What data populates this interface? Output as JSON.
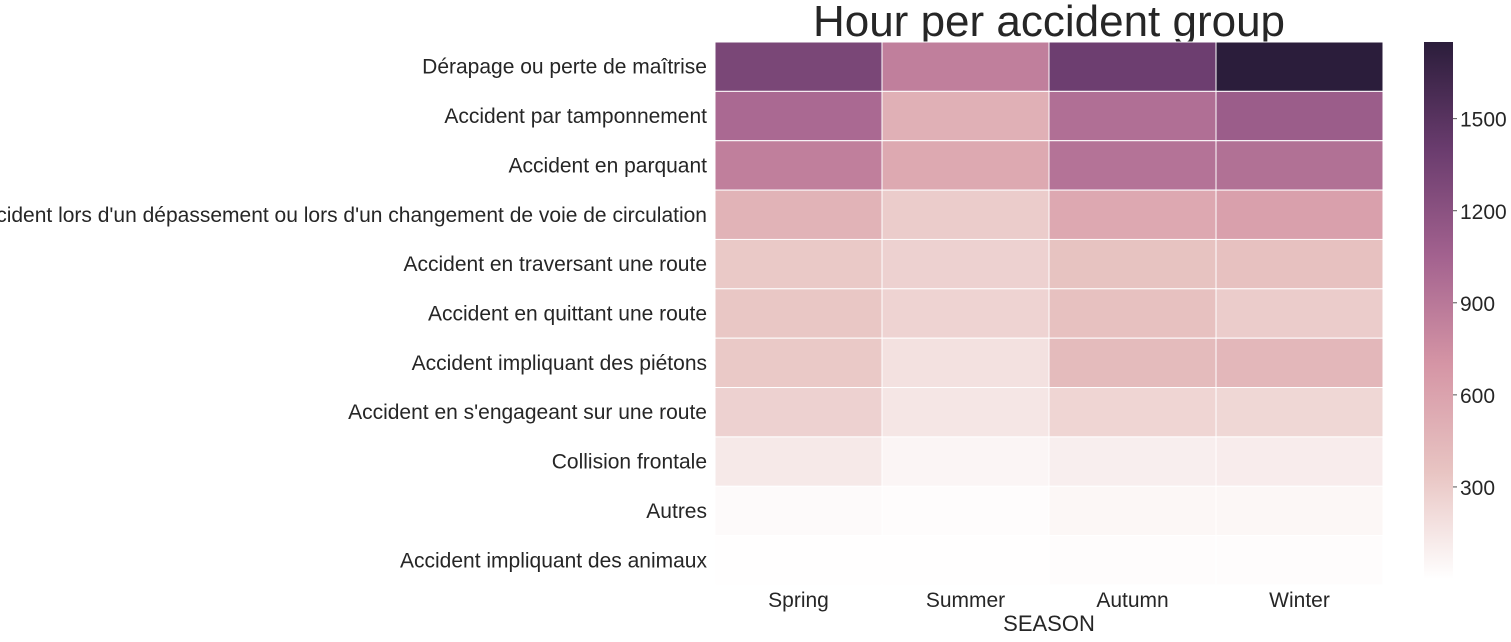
{
  "chart_data": {
    "type": "heatmap",
    "title": "Hour per accident group",
    "xlabel": "SEASON",
    "ylabel": "",
    "columns": [
      "Spring",
      "Summer",
      "Autumn",
      "Winter"
    ],
    "rows": [
      "Dérapage ou perte de maîtrise",
      "Accident par tamponnement",
      "Accident en parquant",
      "Accident lors d'un dépassement ou lors d'un changement de voie de circulation",
      "Accident en traversant une route",
      "Accident en quittant une route",
      "Accident impliquant des piétons",
      "Accident en s'engageant sur une route",
      "Collision frontale",
      "Autres",
      "Accident impliquant des animaux"
    ],
    "values": [
      [
        1300,
        850,
        1380,
        1750
      ],
      [
        1000,
        500,
        960,
        1100
      ],
      [
        850,
        550,
        930,
        950
      ],
      [
        480,
        300,
        560,
        620
      ],
      [
        320,
        270,
        360,
        370
      ],
      [
        330,
        260,
        370,
        300
      ],
      [
        320,
        180,
        420,
        450
      ],
      [
        270,
        150,
        250,
        240
      ],
      [
        130,
        60,
        100,
        110
      ],
      [
        30,
        20,
        50,
        50
      ],
      [
        5,
        5,
        15,
        20
      ]
    ],
    "colorbar": {
      "min": 0,
      "max": 1750,
      "ticks": [
        300,
        600,
        900,
        1200,
        1500
      ],
      "colors": [
        "#ffffff",
        "#e8c4c2",
        "#d595a5",
        "#a3628f",
        "#6a3c6e",
        "#2b1d3b"
      ]
    }
  }
}
